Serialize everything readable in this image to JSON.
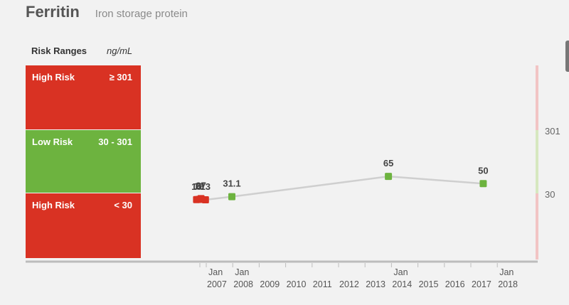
{
  "header": {
    "title": "Ferritin",
    "subtitle": "Iron storage protein"
  },
  "risk_ranges": {
    "heading": "Risk Ranges",
    "unit": "ng/mL",
    "bands": [
      {
        "label": "High Risk",
        "range": "≥ 301",
        "color": "#d93223"
      },
      {
        "label": "Low Risk",
        "range": "30 - 301",
        "color": "#6db33f"
      },
      {
        "label": "High Risk",
        "range": "< 30",
        "color": "#d93223"
      }
    ]
  },
  "chart_data": {
    "type": "line",
    "right_axis_labels": [
      "301",
      "30"
    ],
    "x_tick_labels": [
      [
        "Jan",
        "2007"
      ],
      [
        "Jan",
        "2008"
      ],
      [
        "",
        "2009"
      ],
      [
        "",
        "2010"
      ],
      [
        "",
        "2011"
      ],
      [
        "",
        "2012"
      ],
      [
        "",
        "2013"
      ],
      [
        "Jan",
        "2014"
      ],
      [
        "",
        "2015"
      ],
      [
        "",
        "2016"
      ],
      [
        "",
        "2017"
      ],
      [
        "Jan",
        "2018"
      ]
    ],
    "points": [
      {
        "date": "2006-07",
        "value": 15,
        "label": "15",
        "status": "high"
      },
      {
        "date": "2006-08",
        "value": 18,
        "label": "18",
        "status": "high"
      },
      {
        "date": "2006-09",
        "value": 27,
        "label": "27",
        "status": "high"
      },
      {
        "date": "2006-11",
        "value": 13,
        "label": "13",
        "status": "high"
      },
      {
        "date": "2007-11",
        "value": 31.1,
        "label": "31.1",
        "status": "low"
      },
      {
        "date": "2013-10",
        "value": 65,
        "label": "65",
        "status": "low"
      },
      {
        "date": "2017-05",
        "value": 50,
        "label": "50",
        "status": "low"
      }
    ],
    "colors": {
      "high": "#d93223",
      "low": "#6db33f",
      "line": "#cfcfcf"
    }
  }
}
